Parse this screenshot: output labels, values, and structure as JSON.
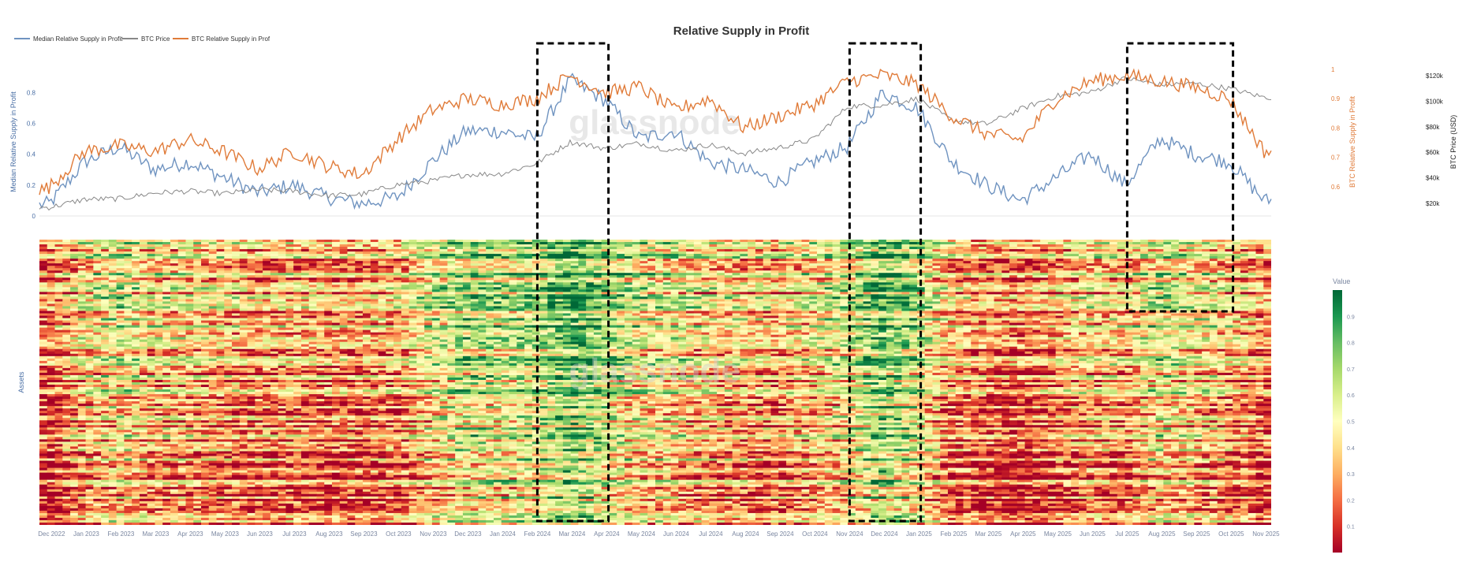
{
  "chart_data": [
    {
      "type": "line",
      "title": "Relative Supply in Profit",
      "watermark": "glassnode",
      "legend": [
        "Median Relative Supply in Profit",
        "BTC Price",
        "BTC Relative Supply in Prof"
      ],
      "legend_position": "top-left",
      "y_left_label": "Median Relative Supply in Profit",
      "y_left_ticks": [
        "0",
        "0.2",
        "0.4",
        "0.6",
        "0.8"
      ],
      "y_left_range": [
        0,
        0.95
      ],
      "y_right_orange_label": "BTC Relative Supply in Profit",
      "y_right_orange_ticks": [
        "0.6",
        "0.65",
        "0.7",
        "0.75",
        "0.8",
        "0.85",
        "0.9",
        "0.95",
        "1"
      ],
      "y_right_orange_tick_text": [
        "0.6",
        "",
        "0.7",
        "",
        "0.8",
        "",
        "0.9",
        "",
        "1"
      ],
      "y_right_orange_range": [
        0.5,
        1.0
      ],
      "y_right_price_label": "BTC Price (USD)",
      "y_right_price_ticks": [
        "$20k",
        "$40k",
        "$60k",
        "$80k",
        "$100k",
        "$120k"
      ],
      "y_right_price_range": [
        10000,
        125000
      ],
      "x_range": [
        "2022-11",
        "2025-11"
      ],
      "series": [
        {
          "name": "Median Relative Supply in Profit",
          "color": "#6f93c0",
          "x": [
            "2022-11",
            "2022-12",
            "2023-01",
            "2023-02",
            "2023-03",
            "2023-04",
            "2023-05",
            "2023-06",
            "2023-07",
            "2023-08",
            "2023-09",
            "2023-10",
            "2023-11",
            "2023-12",
            "2024-01",
            "2024-02",
            "2024-03",
            "2024-04",
            "2024-05",
            "2024-06",
            "2024-07",
            "2024-08",
            "2024-09",
            "2024-10",
            "2024-11",
            "2024-12",
            "2025-01",
            "2025-02",
            "2025-03",
            "2025-04",
            "2025-05",
            "2025-06",
            "2025-07",
            "2025-08",
            "2025-09",
            "2025-10",
            "2025-11"
          ],
          "values": [
            0.05,
            0.08,
            0.35,
            0.45,
            0.3,
            0.35,
            0.25,
            0.15,
            0.2,
            0.12,
            0.08,
            0.12,
            0.35,
            0.55,
            0.55,
            0.5,
            0.88,
            0.75,
            0.5,
            0.55,
            0.35,
            0.3,
            0.22,
            0.35,
            0.45,
            0.8,
            0.7,
            0.35,
            0.2,
            0.1,
            0.25,
            0.4,
            0.2,
            0.5,
            0.4,
            0.35,
            0.1
          ]
        },
        {
          "name": "BTC Price",
          "color": "#888888",
          "x": [
            "2022-11",
            "2022-12",
            "2023-01",
            "2023-02",
            "2023-03",
            "2023-04",
            "2023-05",
            "2023-06",
            "2023-07",
            "2023-08",
            "2023-09",
            "2023-10",
            "2023-11",
            "2023-12",
            "2024-01",
            "2024-02",
            "2024-03",
            "2024-04",
            "2024-05",
            "2024-06",
            "2024-07",
            "2024-08",
            "2024-09",
            "2024-10",
            "2024-11",
            "2024-12",
            "2025-01",
            "2025-02",
            "2025-03",
            "2025-04",
            "2025-05",
            "2025-06",
            "2025-07",
            "2025-08",
            "2025-09",
            "2025-10",
            "2025-11"
          ],
          "values": [
            16500,
            16800,
            23000,
            23500,
            28000,
            29500,
            27500,
            30500,
            29500,
            26000,
            27000,
            34500,
            37500,
            42500,
            43000,
            51000,
            68000,
            63000,
            67000,
            61000,
            66000,
            59000,
            63500,
            70000,
            96000,
            97000,
            102000,
            85000,
            82000,
            94000,
            104000,
            107000,
            118000,
            113000,
            114000,
            110000,
            103000
          ]
        },
        {
          "name": "BTC Relative Supply in Prof",
          "color": "#e07b39",
          "x": [
            "2022-11",
            "2022-12",
            "2023-01",
            "2023-02",
            "2023-03",
            "2023-04",
            "2023-05",
            "2023-06",
            "2023-07",
            "2023-08",
            "2023-09",
            "2023-10",
            "2023-11",
            "2023-12",
            "2024-01",
            "2024-02",
            "2024-03",
            "2024-04",
            "2024-05",
            "2024-06",
            "2024-07",
            "2024-08",
            "2024-09",
            "2024-10",
            "2024-11",
            "2024-12",
            "2025-01",
            "2025-02",
            "2025-03",
            "2025-04",
            "2025-05",
            "2025-06",
            "2025-07",
            "2025-08",
            "2025-09",
            "2025-10",
            "2025-11"
          ],
          "values": [
            0.55,
            0.6,
            0.72,
            0.74,
            0.72,
            0.76,
            0.72,
            0.66,
            0.72,
            0.67,
            0.64,
            0.76,
            0.86,
            0.9,
            0.88,
            0.9,
            0.98,
            0.92,
            0.94,
            0.86,
            0.9,
            0.8,
            0.84,
            0.88,
            0.96,
            0.98,
            0.95,
            0.84,
            0.78,
            0.76,
            0.9,
            0.96,
            0.98,
            0.96,
            0.94,
            0.9,
            0.72
          ]
        }
      ],
      "highlight_windows": [
        [
          "2024-02",
          "2024-04"
        ],
        [
          "2024-11",
          "2025-01"
        ],
        [
          "2025-07",
          "2025-10"
        ]
      ]
    },
    {
      "type": "heatmap",
      "y_label": "Assets",
      "x_ticks": [
        "Dec 2022",
        "Jan 2023",
        "Feb 2023",
        "Mar 2023",
        "Apr 2023",
        "May 2023",
        "Jun 2023",
        "Jul 2023",
        "Aug 2023",
        "Sep 2023",
        "Oct 2023",
        "Nov 2023",
        "Dec 2023",
        "Jan 2024",
        "Feb 2024",
        "Mar 2024",
        "Apr 2024",
        "May 2024",
        "Jun 2024",
        "Jul 2024",
        "Aug 2024",
        "Sep 2024",
        "Oct 2024",
        "Nov 2024",
        "Dec 2024",
        "Jan 2025",
        "Feb 2025",
        "Mar 2025",
        "Apr 2025",
        "May 2025",
        "Jun 2025",
        "Jul 2025",
        "Aug 2025",
        "Sep 2025",
        "Oct 2025",
        "Nov 2025"
      ],
      "colorbar": {
        "title": "Value",
        "ticks": [
          "0.1",
          "0.2",
          "0.3",
          "0.4",
          "0.5",
          "0.6",
          "0.7",
          "0.8",
          "0.9"
        ],
        "range": [
          0,
          1
        ],
        "colors": [
          "#a50026",
          "#d73027",
          "#f46d43",
          "#fdae61",
          "#fee08b",
          "#ffffbf",
          "#d9ef8b",
          "#a6d96a",
          "#66bd63",
          "#1a9850",
          "#006837"
        ]
      },
      "monthly_mean_value": [
        0.22,
        0.2,
        0.42,
        0.52,
        0.4,
        0.42,
        0.35,
        0.3,
        0.33,
        0.3,
        0.28,
        0.34,
        0.5,
        0.62,
        0.6,
        0.62,
        0.8,
        0.68,
        0.5,
        0.5,
        0.4,
        0.38,
        0.35,
        0.45,
        0.55,
        0.75,
        0.6,
        0.32,
        0.25,
        0.2,
        0.3,
        0.4,
        0.35,
        0.55,
        0.45,
        0.38,
        0.25
      ],
      "highlight_windows": [
        [
          "2024-02",
          "2024-04"
        ],
        [
          "2024-11",
          "2025-01"
        ],
        [
          "2025-07",
          "2025-10"
        ]
      ]
    }
  ]
}
